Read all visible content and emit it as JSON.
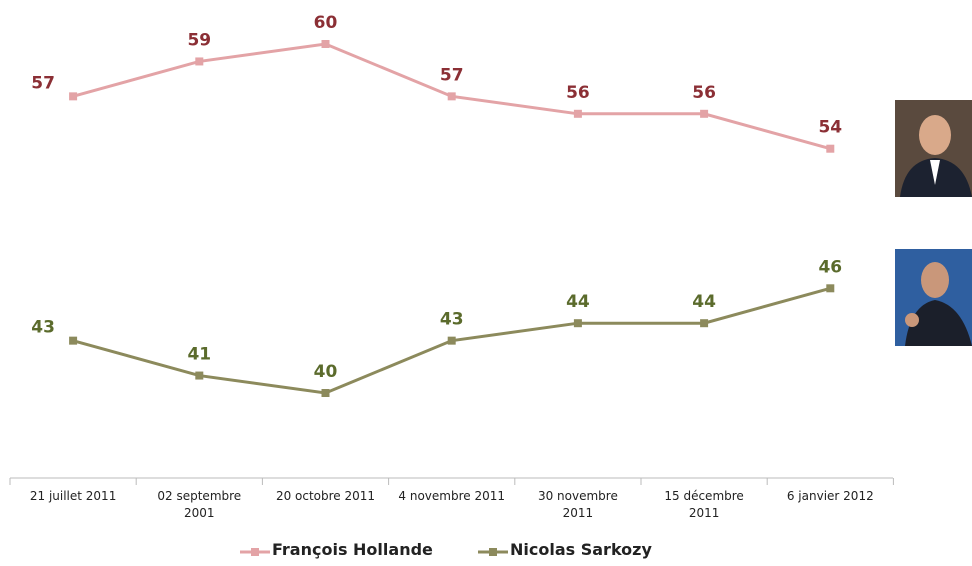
{
  "chart_data": {
    "type": "line",
    "categories": [
      "21 juillet 2011",
      "02 septembre\n2001",
      "20 octobre 2011",
      "4 novembre 2011",
      "30 novembre\n2011",
      "15 décembre\n2011",
      "6 janvier 2012"
    ],
    "series": [
      {
        "name": "François Hollande",
        "color": "#e3a3a6",
        "label_color": "#8b2f35",
        "values": [
          57,
          59,
          60,
          57,
          56,
          56,
          54
        ]
      },
      {
        "name": "Nicolas Sarkozy",
        "color": "#8c8a5c",
        "label_color": "#5b6b2c",
        "values": [
          43,
          41,
          40,
          43,
          44,
          44,
          46
        ]
      }
    ]
  }
}
